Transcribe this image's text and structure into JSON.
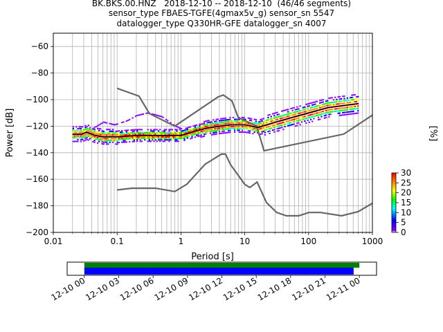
{
  "title_lines": [
    "BK.BKS.00.HNZ   2018-12-10 -- 2018-12-10  (46/46 segments)",
    "sensor_type FBAES-TGFE(4gmax5v_g) sensor_sn 5547",
    "datalogger_type Q330HR-GFE datalogger_sn 4007"
  ],
  "chart_data": {
    "type": "heatmap",
    "xlabel": "Period [s]",
    "ylabel": "Power [dB]",
    "xscale": "log",
    "xlim": [
      0.01,
      1000
    ],
    "ylim": [
      -200,
      -50
    ],
    "grid": true,
    "x_tick_labels": [
      "0.01",
      "0.1",
      "1",
      "10",
      "100",
      "1000"
    ],
    "x_ticks": [
      0.01,
      0.1,
      1,
      10,
      100,
      1000
    ],
    "y_ticks": [
      -60,
      -80,
      -100,
      -120,
      -140,
      -160,
      -180,
      -200
    ],
    "y_tick_labels": [
      "−60",
      "−80",
      "−100",
      "−120",
      "−140",
      "−160",
      "−180",
      "−200"
    ],
    "colorbar": {
      "label": "[%]",
      "range": [
        0,
        30
      ],
      "ticks": [
        0,
        5,
        10,
        15,
        20,
        25,
        30
      ],
      "tick_labels": [
        "0",
        "5",
        "10",
        "15",
        "20",
        "25",
        "30"
      ],
      "colors": [
        "#ffffff",
        "#8b00ff",
        "#0000ff",
        "#00ffff",
        "#00ff00",
        "#ffff00",
        "#ff7f00",
        "#ff0000"
      ]
    },
    "nhnm": [
      [
        0.1,
        -91.5
      ],
      [
        0.22,
        -97.4
      ],
      [
        0.32,
        -110.5
      ],
      [
        0.8,
        -120
      ],
      [
        3.8,
        -98
      ],
      [
        4.6,
        -96.5
      ],
      [
        6.3,
        -101
      ],
      [
        7.9,
        -113.5
      ],
      [
        15.4,
        -120
      ],
      [
        20,
        -138.5
      ],
      [
        354.8,
        -126
      ],
      [
        10000,
        -80
      ]
    ],
    "nlnm": [
      [
        0.1,
        -168
      ],
      [
        0.17,
        -166.7
      ],
      [
        0.4,
        -166.7
      ],
      [
        0.8,
        -169.2
      ],
      [
        1.24,
        -163.7
      ],
      [
        2.4,
        -148.6
      ],
      [
        4.3,
        -141.1
      ],
      [
        5,
        -141.1
      ],
      [
        6,
        -149
      ],
      [
        10,
        -163.8
      ],
      [
        12,
        -166.2
      ],
      [
        15.6,
        -162.1
      ],
      [
        21.9,
        -177.5
      ],
      [
        31.6,
        -185
      ],
      [
        45,
        -187.5
      ],
      [
        70,
        -187.5
      ],
      [
        101,
        -185
      ],
      [
        154,
        -185
      ],
      [
        328,
        -187.5
      ],
      [
        600,
        -184.4
      ],
      [
        1000,
        -178
      ]
    ],
    "mode": [
      [
        0.02,
        -126
      ],
      [
        0.028,
        -126
      ],
      [
        0.033,
        -124.5
      ],
      [
        0.045,
        -127
      ],
      [
        0.06,
        -128
      ],
      [
        0.1,
        -128
      ],
      [
        0.2,
        -127
      ],
      [
        0.5,
        -127
      ],
      [
        1,
        -127
      ],
      [
        1.6,
        -124
      ],
      [
        2.5,
        -121.5
      ],
      [
        4,
        -120
      ],
      [
        6,
        -119
      ],
      [
        10,
        -119
      ],
      [
        16,
        -121
      ],
      [
        30,
        -117
      ],
      [
        50,
        -114
      ],
      [
        100,
        -110
      ],
      [
        200,
        -106
      ],
      [
        600,
        -103
      ]
    ],
    "density_core": [
      [
        0.02,
        -126
      ],
      [
        0.028,
        -126
      ],
      [
        0.033,
        -124.5
      ],
      [
        0.045,
        -127
      ],
      [
        0.06,
        -128
      ],
      [
        0.1,
        -128
      ],
      [
        0.2,
        -127
      ],
      [
        0.5,
        -127
      ],
      [
        1,
        -127
      ],
      [
        1.6,
        -124
      ],
      [
        2.5,
        -121.5
      ],
      [
        4,
        -120
      ],
      [
        6,
        -119
      ],
      [
        10,
        -119
      ],
      [
        16,
        -121
      ],
      [
        30,
        -117
      ],
      [
        50,
        -114
      ],
      [
        100,
        -110
      ],
      [
        200,
        -106
      ],
      [
        600,
        -103
      ]
    ],
    "density_upper_branch": [
      [
        0.04,
        -122
      ],
      [
        0.06,
        -117
      ],
      [
        0.09,
        -119
      ],
      [
        0.14,
        -116
      ],
      [
        0.2,
        -112
      ],
      [
        0.3,
        -110
      ],
      [
        0.5,
        -113
      ],
      [
        0.8,
        -120
      ],
      [
        1,
        -122
      ]
    ],
    "date_axis": {
      "tick_labels": [
        "12-10 00",
        "12-10 03",
        "12-10 06",
        "12-10 09",
        "12-10 12",
        "12-10 15",
        "12-10 18",
        "12-10 21",
        "12-11 00"
      ],
      "range_hours": [
        -1.5,
        25.5
      ],
      "bars": [
        {
          "name": "",
          "color": "#008000",
          "start_hours": 0,
          "end_hours": 24.0
        },
        {
          "name": "",
          "color": "#0000ff",
          "start_hours": 0,
          "end_hours": 23.5
        }
      ]
    }
  }
}
